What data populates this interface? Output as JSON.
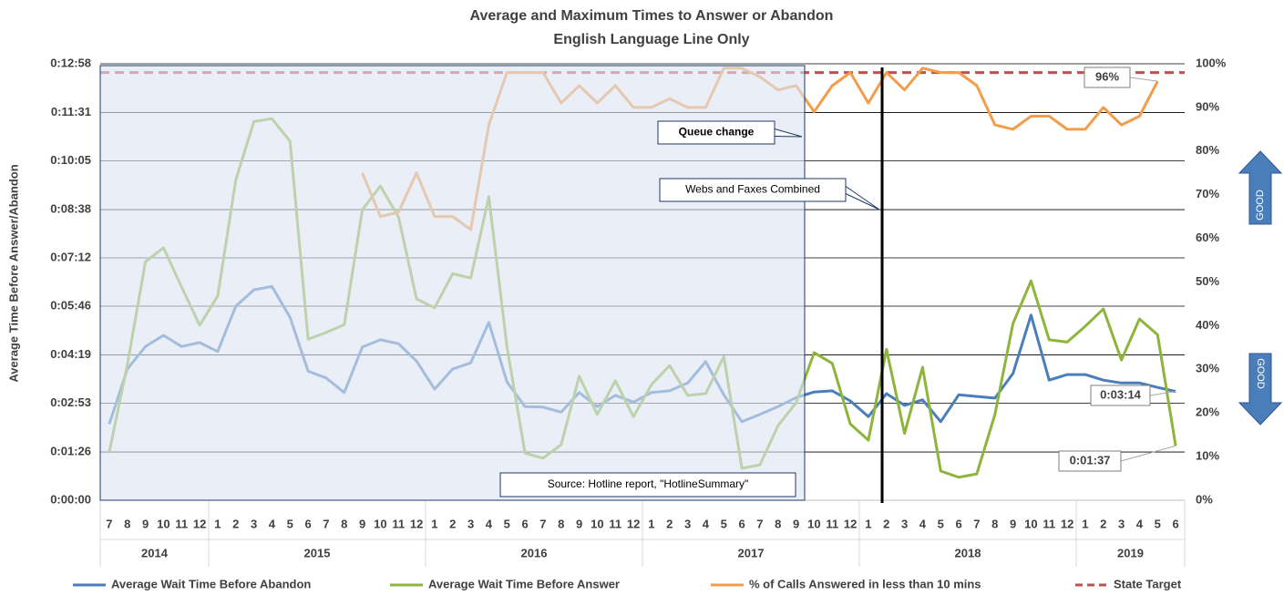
{
  "chart_data": {
    "type": "line",
    "title": "Average and Maximum Times to Answer or Abandon",
    "subtitle": "English Language Line Only",
    "y_label": "Average Time Before Answer/Abandon",
    "categories": [
      "7",
      "8",
      "9",
      "10",
      "11",
      "12",
      "1",
      "2",
      "3",
      "4",
      "5",
      "6",
      "7",
      "8",
      "9",
      "10",
      "11",
      "12",
      "1",
      "2",
      "3",
      "4",
      "5",
      "6",
      "7",
      "8",
      "9",
      "10",
      "11",
      "12",
      "1",
      "2",
      "3",
      "4",
      "5",
      "6",
      "7",
      "8",
      "9",
      "10",
      "11",
      "12",
      "1",
      "2",
      "3",
      "4",
      "5",
      "6",
      "7",
      "8",
      "9",
      "10",
      "11",
      "12",
      "1",
      "2",
      "3",
      "4",
      "5",
      "6"
    ],
    "years": [
      "2014",
      "2015",
      "2016",
      "2017",
      "2018",
      "2019"
    ],
    "ylim": [
      0,
      778
    ],
    "yticks": [
      {
        "value": 0,
        "label": "0:00:00"
      },
      {
        "value": 86,
        "label": "0:01:26"
      },
      {
        "value": 173,
        "label": "0:02:53"
      },
      {
        "value": 259,
        "label": "0:04:19"
      },
      {
        "value": 346,
        "label": "0:05:46"
      },
      {
        "value": 432,
        "label": "0:07:12"
      },
      {
        "value": 518,
        "label": "0:08:38"
      },
      {
        "value": 605,
        "label": "0:10:05"
      },
      {
        "value": 691,
        "label": "0:11:31"
      },
      {
        "value": 778,
        "label": "0:12:58"
      }
    ],
    "y2lim": [
      0,
      100
    ],
    "y2ticks": [
      {
        "value": 0,
        "label": "0%"
      },
      {
        "value": 10,
        "label": "10%"
      },
      {
        "value": 20,
        "label": "20%"
      },
      {
        "value": 30,
        "label": "30%"
      },
      {
        "value": 40,
        "label": "40%"
      },
      {
        "value": 50,
        "label": "50%"
      },
      {
        "value": 60,
        "label": "60%"
      },
      {
        "value": 70,
        "label": "70%"
      },
      {
        "value": 80,
        "label": "80%"
      },
      {
        "value": 90,
        "label": "90%"
      },
      {
        "value": 100,
        "label": "100%"
      }
    ],
    "grid": true,
    "series": [
      {
        "name": "Average Wait Time Before Abandon",
        "color": "#4a7ebb",
        "axis": "y",
        "values": [
          136,
          234,
          274,
          294,
          274,
          281,
          265,
          346,
          375,
          381,
          326,
          230,
          218,
          192,
          273,
          286,
          279,
          248,
          198,
          234,
          245,
          317,
          211,
          167,
          166,
          157,
          192,
          167,
          187,
          175,
          192,
          195,
          209,
          247,
          188,
          140,
          153,
          167,
          183,
          193,
          195,
          177,
          149,
          190,
          169,
          179,
          140,
          188,
          185,
          182,
          226,
          330,
          214,
          224,
          224,
          214,
          209,
          209,
          201,
          194
        ],
        "value_labels": [
          null,
          null,
          null,
          null,
          null,
          null,
          null,
          null,
          null,
          null,
          null,
          null,
          null,
          null,
          null,
          null,
          null,
          null,
          null,
          null,
          null,
          null,
          null,
          null,
          null,
          null,
          null,
          null,
          null,
          null,
          null,
          null,
          null,
          null,
          null,
          null,
          null,
          null,
          null,
          null,
          null,
          null,
          null,
          null,
          null,
          null,
          null,
          null,
          null,
          null,
          null,
          null,
          null,
          null,
          null,
          null,
          null,
          null,
          null,
          "0:03:14"
        ]
      },
      {
        "name": "Average Wait Time Before Answer",
        "color": "#8db53c",
        "axis": "y",
        "values": [
          86,
          242,
          425,
          450,
          380,
          312,
          364,
          571,
          675,
          680,
          640,
          287,
          299,
          313,
          518,
          560,
          505,
          359,
          343,
          404,
          396,
          541,
          274,
          84,
          75,
          99,
          221,
          153,
          213,
          149,
          206,
          240,
          187,
          190,
          256,
          57,
          63,
          133,
          174,
          263,
          244,
          136,
          107,
          269,
          119,
          237,
          52,
          41,
          47,
          153,
          315,
          391,
          286,
          282,
          310,
          341,
          250,
          323,
          295,
          97
        ],
        "value_labels": [
          null,
          null,
          null,
          null,
          null,
          null,
          null,
          null,
          null,
          null,
          null,
          null,
          null,
          null,
          null,
          null,
          null,
          null,
          null,
          null,
          null,
          null,
          null,
          null,
          null,
          null,
          null,
          null,
          null,
          null,
          null,
          null,
          null,
          null,
          null,
          null,
          null,
          null,
          null,
          null,
          null,
          null,
          null,
          null,
          null,
          null,
          null,
          null,
          null,
          null,
          null,
          null,
          null,
          null,
          null,
          null,
          null,
          null,
          null,
          "0:01:37"
        ]
      },
      {
        "name": "% of Calls Answered in less than 10 mins",
        "color": "#f39c4a",
        "axis": "y2",
        "values": [
          null,
          null,
          null,
          null,
          null,
          null,
          null,
          null,
          null,
          null,
          null,
          null,
          null,
          null,
          75,
          65,
          66,
          75,
          65,
          65,
          62,
          86,
          98,
          98,
          98,
          91,
          95,
          91,
          95,
          90,
          90,
          92,
          90,
          90,
          99,
          99,
          97,
          94,
          95,
          89,
          95,
          98,
          91,
          98,
          94,
          99,
          98,
          98,
          95,
          86,
          85,
          88,
          88,
          85,
          85,
          90,
          86,
          88,
          96,
          null
        ],
        "value_labels": [
          null,
          null,
          null,
          null,
          null,
          null,
          null,
          null,
          null,
          null,
          null,
          null,
          null,
          null,
          null,
          null,
          null,
          null,
          null,
          null,
          null,
          null,
          null,
          null,
          null,
          null,
          null,
          null,
          null,
          null,
          null,
          null,
          null,
          null,
          null,
          null,
          null,
          null,
          null,
          null,
          null,
          null,
          null,
          null,
          null,
          null,
          null,
          null,
          null,
          null,
          null,
          null,
          null,
          null,
          null,
          null,
          null,
          null,
          "96%",
          null
        ]
      }
    ],
    "target": {
      "name": "State Target",
      "value": 98,
      "color": "#c0504d",
      "axis": "y2"
    },
    "annotations": {
      "queue_change": "Queue change",
      "webs_faxes": "Webs and Faxes Combined",
      "source": "Source: Hotline report, \"HotlineSummary\"",
      "good": "GOOD"
    }
  }
}
